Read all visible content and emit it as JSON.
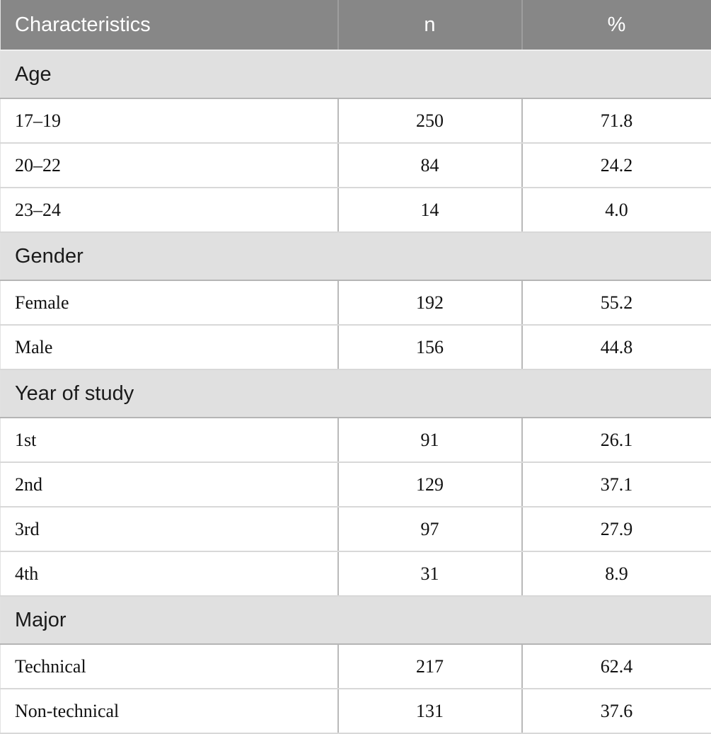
{
  "table": {
    "columns": [
      {
        "label": "Characteristics"
      },
      {
        "label": "n"
      },
      {
        "label": "%"
      }
    ],
    "sections": [
      {
        "label": "Age",
        "rows": [
          {
            "label": "17–19",
            "n": "250",
            "pct": "71.8"
          },
          {
            "label": "20–22",
            "n": "84",
            "pct": "24.2"
          },
          {
            "label": "23–24",
            "n": "14",
            "pct": "4.0"
          }
        ]
      },
      {
        "label": "Gender",
        "rows": [
          {
            "label": "Female",
            "n": "192",
            "pct": "55.2"
          },
          {
            "label": "Male",
            "n": "156",
            "pct": "44.8"
          }
        ]
      },
      {
        "label": "Year of study",
        "rows": [
          {
            "label": "1st",
            "n": "91",
            "pct": "26.1"
          },
          {
            "label": "2nd",
            "n": "129",
            "pct": "37.1"
          },
          {
            "label": "3rd",
            "n": "97",
            "pct": "27.9"
          },
          {
            "label": "4th",
            "n": "31",
            "pct": "8.9"
          }
        ]
      },
      {
        "label": "Major",
        "rows": [
          {
            "label": "Technical",
            "n": "217",
            "pct": "62.4"
          },
          {
            "label": "Non-technical",
            "n": "131",
            "pct": "37.6"
          }
        ]
      }
    ],
    "colors": {
      "header_bg": "#878787",
      "header_text": "#ffffff",
      "section_bg": "#e0e0e0",
      "section_text": "#1a1a1a",
      "row_bg": "#ffffff",
      "row_text": "#111111",
      "grid_line": "#b9b9b9"
    }
  }
}
